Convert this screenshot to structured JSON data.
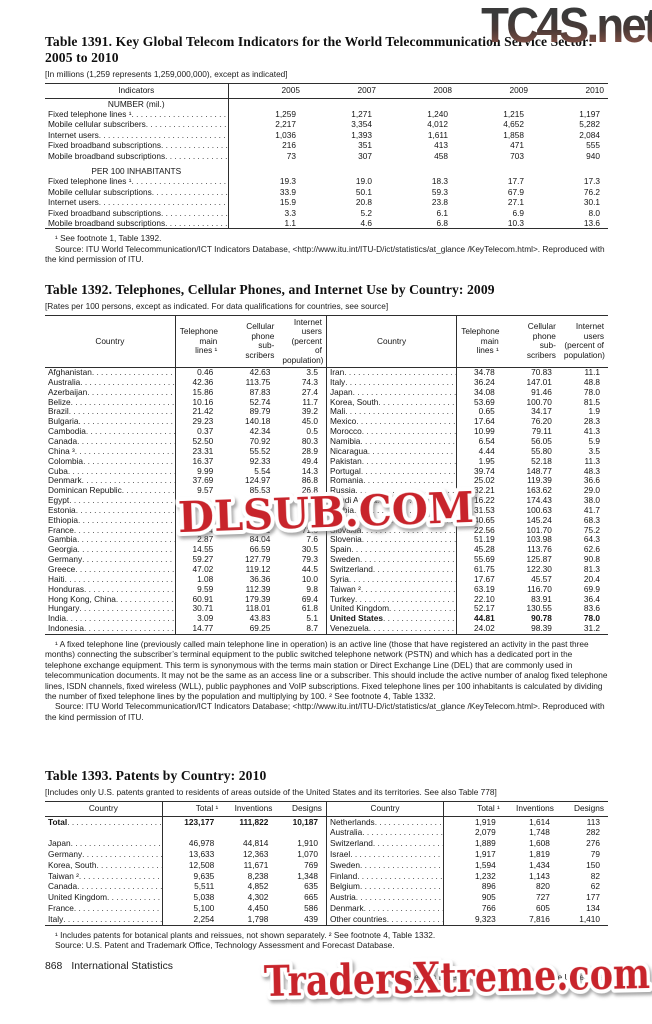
{
  "watermarks": {
    "top": "TC4S.net",
    "middle": "DLSUB.COM",
    "bottom": "TradersXtreme.com"
  },
  "table1391": {
    "title": "Table 1391. Key Global Telecom Indicators for the World Telecommunication Service Sector: 2005 to 2010",
    "note": "[In millions (1,259 represents 1,259,000,000), except as indicated]",
    "columns": [
      "Indicators",
      "2005",
      "2007",
      "2008",
      "2009",
      "2010"
    ],
    "sections": [
      {
        "header": "NUMBER (mil.)",
        "rows": [
          {
            "label": "Fixed telephone lines ¹",
            "values": [
              "1,259",
              "1,271",
              "1,240",
              "1,215",
              "1,197"
            ]
          },
          {
            "label": "Mobile cellular subscribers",
            "values": [
              "2,217",
              "3,354",
              "4,012",
              "4,652",
              "5,282"
            ]
          },
          {
            "label": "Internet users",
            "values": [
              "1,036",
              "1,393",
              "1,611",
              "1,858",
              "2,084"
            ]
          },
          {
            "label": "Fixed broadband subscriptions",
            "values": [
              "216",
              "351",
              "413",
              "471",
              "555"
            ]
          },
          {
            "label": "Mobile broadband subscriptions",
            "values": [
              "73",
              "307",
              "458",
              "703",
              "940"
            ]
          }
        ]
      },
      {
        "header": "PER 100 INHABITANTS",
        "rows": [
          {
            "label": "Fixed telephone lines ¹",
            "values": [
              "19.3",
              "19.0",
              "18.3",
              "17.7",
              "17.3"
            ]
          },
          {
            "label": "Mobile cellular subscriptions",
            "values": [
              "33.9",
              "50.1",
              "59.3",
              "67.9",
              "76.2"
            ]
          },
          {
            "label": "Internet users",
            "values": [
              "15.9",
              "20.8",
              "23.8",
              "27.1",
              "30.1"
            ]
          },
          {
            "label": "Fixed broadband subscriptions",
            "values": [
              "3.3",
              "5.2",
              "6.1",
              "6.9",
              "8.0"
            ]
          },
          {
            "label": "Mobile broadband subscriptions",
            "values": [
              "1.1",
              "4.6",
              "6.8",
              "10.3",
              "13.6"
            ]
          }
        ]
      }
    ],
    "footnotes": [
      "¹ See footnote 1, Table 1392.",
      "Source: ITU World Telecommunication/ICT Indicators Database, <http://www.itu.int/ITU-D/ict/statistics/at_glance /KeyTelecom.html>. Reproduced with the kind permission of ITU."
    ]
  },
  "table1392": {
    "title": "Table 1392. Telephones, Cellular Phones, and Internet Use by Country: 2009",
    "note": "[Rates per 100 persons, except as indicated. For data qualifications for countries, see source]",
    "header": {
      "country": "Country",
      "cols": [
        {
          "lines": [
            "Telephone",
            "main",
            "lines ¹"
          ]
        },
        {
          "lines": [
            "Cellular",
            "phone",
            "sub-",
            "scribers"
          ]
        },
        {
          "lines": [
            "Internet",
            "users",
            "(percent of",
            "population)"
          ]
        }
      ]
    },
    "left_rows": [
      {
        "label": "Afghanistan",
        "values": [
          "0.46",
          "42.63",
          "3.5"
        ]
      },
      {
        "label": "Australia",
        "values": [
          "42.36",
          "113.75",
          "74.3"
        ]
      },
      {
        "label": "Azerbaijan",
        "values": [
          "15.86",
          "87.83",
          "27.4"
        ]
      },
      {
        "label": "Belize",
        "values": [
          "10.16",
          "52.74",
          "11.7"
        ]
      },
      {
        "label": "Brazil",
        "values": [
          "21.42",
          "89.79",
          "39.2"
        ]
      },
      {
        "label": "Bulgaria",
        "values": [
          "29.23",
          "140.18",
          "45.0"
        ]
      },
      {
        "label": "Cambodia",
        "values": [
          "0.37",
          "42.34",
          "0.5"
        ]
      },
      {
        "label": "Canada",
        "values": [
          "52.50",
          "70.92",
          "80.3"
        ]
      },
      {
        "label": "China ³",
        "values": [
          "23.31",
          "55.52",
          "28.9"
        ]
      },
      {
        "label": "Colombia",
        "values": [
          "16.37",
          "92.33",
          "49.4"
        ]
      },
      {
        "label": "Cuba",
        "values": [
          "9.99",
          "5.54",
          "14.3"
        ]
      },
      {
        "label": "Denmark",
        "values": [
          "37.69",
          "124.97",
          "86.8"
        ]
      },
      {
        "label": "Dominican Republic",
        "values": [
          "9.57",
          "85.53",
          "26.8"
        ]
      },
      {
        "label": "Egypt",
        "values": [
          "",
          "",
          ""
        ]
      },
      {
        "label": "Estonia",
        "values": [
          "",
          "",
          ""
        ]
      },
      {
        "label": "Ethiopia",
        "values": [
          "",
          "",
          ""
        ]
      },
      {
        "label": "France",
        "values": [
          "56.94",
          "95.51",
          "71.6"
        ]
      },
      {
        "label": "Gambia",
        "values": [
          "2.87",
          "84.04",
          "7.6"
        ]
      },
      {
        "label": "Georgia",
        "values": [
          "14.55",
          "66.59",
          "30.5"
        ]
      },
      {
        "label": "Germany",
        "values": [
          "59.27",
          "127.79",
          "79.3"
        ]
      },
      {
        "label": "Greece",
        "values": [
          "47.02",
          "119.12",
          "44.5"
        ]
      },
      {
        "label": "Haiti",
        "values": [
          "1.08",
          "36.36",
          "10.0"
        ]
      },
      {
        "label": "Honduras",
        "values": [
          "9.59",
          "112.39",
          "9.8"
        ]
      },
      {
        "label": "Hong Kong, China",
        "values": [
          "60.91",
          "179.39",
          "69.4"
        ]
      },
      {
        "label": "Hungary",
        "values": [
          "30.71",
          "118.01",
          "61.8"
        ]
      },
      {
        "label": "India",
        "values": [
          "3.09",
          "43.83",
          "5.1"
        ]
      },
      {
        "label": "Indonesia",
        "values": [
          "14.77",
          "69.25",
          "8.7"
        ]
      }
    ],
    "right_rows": [
      {
        "label": "Iran",
        "values": [
          "34.78",
          "70.83",
          "11.1"
        ]
      },
      {
        "label": "Italy",
        "values": [
          "36.24",
          "147.01",
          "48.8"
        ]
      },
      {
        "label": "Japan",
        "values": [
          "34.08",
          "91.46",
          "78.0"
        ]
      },
      {
        "label": "Korea, South",
        "values": [
          "53.69",
          "100.70",
          "81.5"
        ]
      },
      {
        "label": "Mali",
        "values": [
          "0.65",
          "34.17",
          "1.9"
        ]
      },
      {
        "label": "Mexico",
        "values": [
          "17.64",
          "76.20",
          "28.3"
        ]
      },
      {
        "label": "Morocco",
        "values": [
          "10.99",
          "79.11",
          "41.3"
        ]
      },
      {
        "label": "Namibia",
        "values": [
          "6.54",
          "56.05",
          "5.9"
        ]
      },
      {
        "label": "Nicaragua",
        "values": [
          "4.44",
          "55.80",
          "3.5"
        ]
      },
      {
        "label": "Pakistan",
        "values": [
          "1.95",
          "52.18",
          "11.3"
        ]
      },
      {
        "label": "Portugal",
        "values": [
          "39.74",
          "148.77",
          "48.3"
        ]
      },
      {
        "label": "Romania",
        "values": [
          "25.02",
          "119.39",
          "36.6"
        ]
      },
      {
        "label": "Russia",
        "values": [
          "32.21",
          "163.62",
          "29.0"
        ]
      },
      {
        "label": "Saudi Arabia",
        "values": [
          "16.22",
          "174.43",
          "38.0"
        ]
      },
      {
        "label": "Serbia",
        "values": [
          "31.53",
          "100.63",
          "41.7"
        ]
      },
      {
        "label": "Singapore",
        "values": [
          "40.65",
          "145.24",
          "68.3"
        ]
      },
      {
        "label": "Slovakia",
        "values": [
          "22.56",
          "101.70",
          "75.2"
        ]
      },
      {
        "label": "Slovenia",
        "values": [
          "51.19",
          "103.98",
          "64.3"
        ]
      },
      {
        "label": "Spain",
        "values": [
          "45.28",
          "113.76",
          "62.6"
        ]
      },
      {
        "label": "Sweden",
        "values": [
          "55.69",
          "125.87",
          "90.8"
        ]
      },
      {
        "label": "Switzerland",
        "values": [
          "61.75",
          "122.30",
          "81.3"
        ]
      },
      {
        "label": "Syria",
        "values": [
          "17.67",
          "45.57",
          "20.4"
        ]
      },
      {
        "label": "Taiwan ²",
        "values": [
          "63.19",
          "116.70",
          "69.9"
        ]
      },
      {
        "label": "Turkey",
        "values": [
          "22.10",
          "83.91",
          "36.4"
        ]
      },
      {
        "label": "United Kingdom",
        "values": [
          "52.17",
          "130.55",
          "83.6"
        ]
      },
      {
        "label": "United States",
        "bold": true,
        "values": [
          "44.81",
          "90.78",
          "78.0"
        ]
      },
      {
        "label": "Venezuela",
        "values": [
          "24.02",
          "98.39",
          "31.2"
        ]
      }
    ],
    "footnotes": [
      "¹ A fixed telephone line (previously called main telephone line in operation) is an active line (those that have registered an activity in the past three months) connecting the subscriber’s terminal equipment to the public switched telephone network (PSTN) and which has a dedicated port in the telephone exchange equipment. This term is synonymous with the terms main station or Direct Exchange Line (DEL) that are commonly used in telecommunication documents. It may not be the same as an access line or a subscriber. This should include the active number of analog fixed telephone lines, ISDN channels, fixed wireless (WLL), public payphones and VoIP subscriptions. Fixed telephone lines per 100 inhabitants is calculated by dividing the number of fixed telephone lines by the population and multiplying by 100. ² See footnote 4, Table 1332.",
      "Source: ITU World Telecommunication/ICT Indicators Database; <http://www.itu.int/ITU-D/ict/statistics/at_glance /KeyTelecom.html>. Reproduced with the kind permission of ITU."
    ]
  },
  "table1393": {
    "title": "Table 1393. Patents by Country: 2010",
    "note": "[Includes only U.S. patents granted to residents of areas outside of the United States and its territories. See also Table 778]",
    "header": {
      "country": "Country",
      "cols": [
        "Total ¹",
        "Inventions",
        "Designs"
      ]
    },
    "left_rows": [
      {
        "label": "Total",
        "bold": true,
        "values": [
          "123,177",
          "111,822",
          "10,187"
        ]
      },
      {
        "label": null,
        "values": [
          "",
          "",
          ""
        ]
      },
      {
        "label": "Japan",
        "values": [
          "46,978",
          "44,814",
          "1,910"
        ]
      },
      {
        "label": "Germany",
        "values": [
          "13,633",
          "12,363",
          "1,070"
        ]
      },
      {
        "label": "Korea, South",
        "values": [
          "12,508",
          "11,671",
          "769"
        ]
      },
      {
        "label": "Taiwan ²",
        "values": [
          "9,635",
          "8,238",
          "1,348"
        ]
      },
      {
        "label": "Canada",
        "values": [
          "5,511",
          "4,852",
          "635"
        ]
      },
      {
        "label": "United Kingdom",
        "values": [
          "5,038",
          "4,302",
          "665"
        ]
      },
      {
        "label": "France",
        "values": [
          "5,100",
          "4,450",
          "586"
        ]
      },
      {
        "label": "Italy",
        "values": [
          "2,254",
          "1,798",
          "439"
        ]
      }
    ],
    "right_rows": [
      {
        "label": "Netherlands",
        "values": [
          "1,919",
          "1,614",
          "113"
        ]
      },
      {
        "label": "Australia",
        "values": [
          "2,079",
          "1,748",
          "282"
        ]
      },
      {
        "label": "Switzerland",
        "values": [
          "1,889",
          "1,608",
          "276"
        ]
      },
      {
        "label": "Israel",
        "values": [
          "1,917",
          "1,819",
          "79"
        ]
      },
      {
        "label": "Sweden",
        "values": [
          "1,594",
          "1,434",
          "150"
        ]
      },
      {
        "label": "Finland",
        "values": [
          "1,232",
          "1,143",
          "82"
        ]
      },
      {
        "label": "Belgium",
        "values": [
          "896",
          "820",
          "62"
        ]
      },
      {
        "label": "Austria",
        "values": [
          "905",
          "727",
          "177"
        ]
      },
      {
        "label": "Denmark",
        "values": [
          "766",
          "605",
          "134"
        ]
      },
      {
        "label": "Other countries",
        "values": [
          "9,323",
          "7,816",
          "1,410"
        ]
      }
    ],
    "footnotes": [
      "¹ Includes patents for botanical plants and reissues, not shown separately. ² See footnote 4, Table 1332.",
      "Source: U.S. Patent and Trademark Office, Technology Assessment and Forecast Database."
    ]
  },
  "footer": {
    "page_number": "868",
    "section_label": "International Statistics",
    "attribution": "U.S. Census Bureau, Statistical Abstract of the United States: 2012"
  }
}
